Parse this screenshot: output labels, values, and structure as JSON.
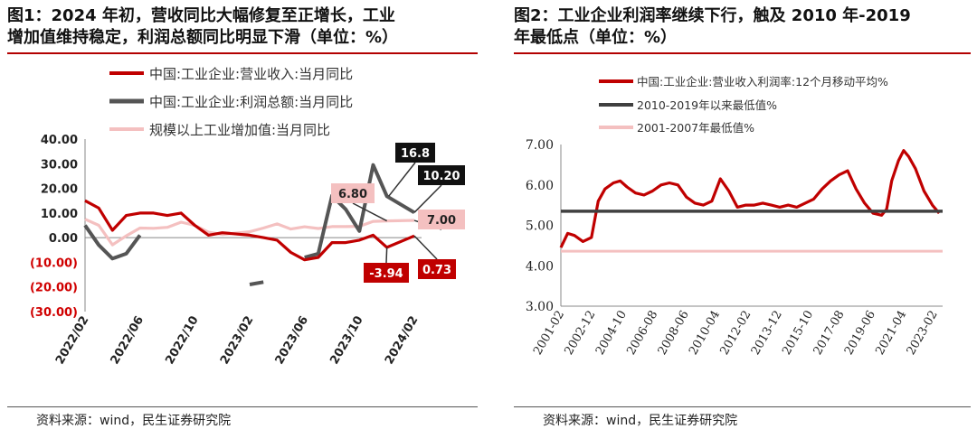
{
  "left": {
    "title_line1": "图1：2024 年初，营收同比大幅修复至正增长，工业",
    "title_line2": "增加值维持稳定，利润总额同比明显下滑（单位：%）",
    "source": "资料来源：wind，民生证券研究院",
    "chart_data": {
      "type": "line",
      "ylim": [
        -30,
        40
      ],
      "yticks": [
        "40.00",
        "30.00",
        "20.00",
        "10.00",
        "0.00",
        "(10.00)",
        "(20.00)",
        "(30.00)"
      ],
      "xticks": [
        "2022/02",
        "2022/06",
        "2022/10",
        "2023/02",
        "2023/06",
        "2023/10",
        "2024/02"
      ],
      "x": [
        "2022/02",
        "2022/03",
        "2022/04",
        "2022/05",
        "2022/06",
        "2022/07",
        "2022/08",
        "2022/09",
        "2022/10",
        "2022/11",
        "2022/12",
        "2023/02",
        "2023/03",
        "2023/04",
        "2023/05",
        "2023/06",
        "2023/07",
        "2023/08",
        "2023/09",
        "2023/10",
        "2023/11",
        "2023/12",
        "2024/02"
      ],
      "series": [
        {
          "name": "中国:工业企业:营业收入:当月同比",
          "color": "#c00000",
          "values": [
            15,
            12,
            3,
            9,
            10,
            10,
            9,
            10,
            5,
            1,
            2,
            1,
            0,
            -1,
            -6,
            -9,
            -8,
            -2,
            -2,
            -1,
            1,
            -3.94,
            0.73
          ]
        },
        {
          "name": "中国:工业企业:利润总额:当月同比",
          "color": "#555555",
          "values": [
            5,
            -3,
            -8.5,
            -6.5,
            1,
            null,
            null,
            null,
            null,
            null,
            null,
            -19,
            -18,
            null,
            null,
            -8,
            -6.5,
            17,
            11.5,
            2.7,
            29.5,
            16.8,
            10.2
          ]
        },
        {
          "name": "规模以上工业增加值:当月同比",
          "color": "#f4c0c0",
          "values": [
            7.5,
            5,
            -2.9,
            0.7,
            3.9,
            3.8,
            4.2,
            6.3,
            5,
            2.2,
            1.3,
            2.4,
            3.9,
            5.6,
            3.5,
            4.4,
            3.7,
            4.5,
            4.5,
            4.6,
            6.6,
            6.8,
            7.0
          ]
        }
      ],
      "annotations": [
        "16.8",
        "10.20",
        "6.80",
        "7.00",
        "-3.94",
        "0.73"
      ]
    }
  },
  "right": {
    "title_line1": "图2：工业企业利润率继续下行，触及 2010 年-2019",
    "title_line2": "年最低点（单位：%）",
    "source": "资料来源：wind，民生证券研究院",
    "chart_data": {
      "type": "line",
      "ylim": [
        3,
        7
      ],
      "yticks": [
        "7.00",
        "6.00",
        "5.00",
        "4.00",
        "3.00"
      ],
      "xticks": [
        "2001-02",
        "2002-12",
        "2004-10",
        "2006-08",
        "2008-06",
        "2010-04",
        "2012-02",
        "2013-12",
        "2015-10",
        "2017-08",
        "2019-06",
        "2021-04",
        "2023-02"
      ],
      "x": [
        2001.1,
        2001.5,
        2001.9,
        2002.4,
        2002.9,
        2003.3,
        2003.7,
        2004.2,
        2004.6,
        2005.0,
        2005.5,
        2006.0,
        2006.5,
        2007.0,
        2007.5,
        2008.0,
        2008.5,
        2009.0,
        2009.5,
        2010.0,
        2010.5,
        2011.0,
        2011.5,
        2012.0,
        2012.5,
        2013.0,
        2013.5,
        2014.0,
        2014.5,
        2015.0,
        2015.5,
        2016.0,
        2016.5,
        2017.0,
        2017.5,
        2018.0,
        2018.5,
        2019.0,
        2019.5,
        2020.0,
        2020.3,
        2020.6,
        2021.0,
        2021.3,
        2021.6,
        2022.0,
        2022.5,
        2023.0,
        2023.4
      ],
      "series": [
        {
          "name": "中国:工业企业:营业收入利润率:12个月移动平均%",
          "color": "#c00000",
          "values": [
            4.45,
            4.8,
            4.75,
            4.6,
            4.7,
            5.6,
            5.9,
            6.05,
            6.1,
            5.95,
            5.8,
            5.75,
            5.85,
            6.0,
            6.05,
            6.0,
            5.7,
            5.55,
            5.5,
            5.6,
            6.15,
            5.85,
            5.45,
            5.5,
            5.5,
            5.55,
            5.5,
            5.45,
            5.5,
            5.45,
            5.55,
            5.65,
            5.9,
            6.1,
            6.25,
            6.35,
            5.9,
            5.55,
            5.3,
            5.25,
            5.4,
            6.1,
            6.6,
            6.85,
            6.7,
            6.4,
            5.85,
            5.5,
            5.3
          ]
        },
        {
          "name": "2010-2019年以来最低值%",
          "color": "#404040",
          "constant": 5.35
        },
        {
          "name": "2001-2007年最低值%",
          "color": "#f4c0c0",
          "constant": 4.36
        }
      ]
    }
  }
}
